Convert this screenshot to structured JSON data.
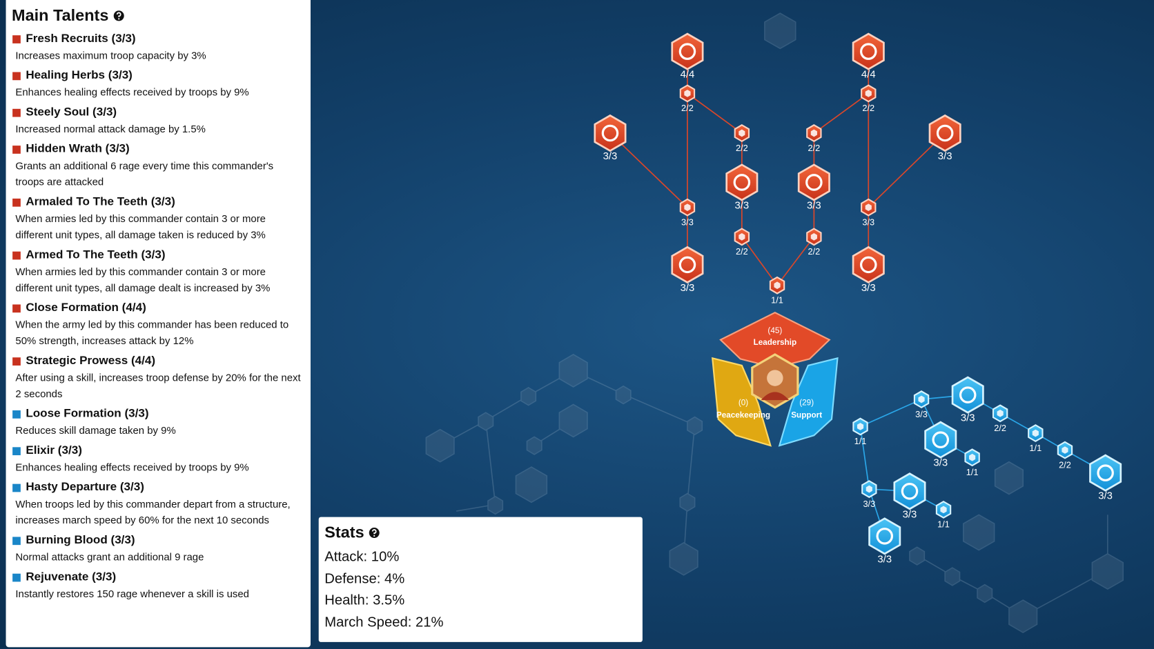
{
  "panel": {
    "title": "Main Talents",
    "talents": [
      {
        "name": "Fresh Recruits (3/3)",
        "description": "Increases maximum troop capacity by 3%",
        "color": "#c8321f"
      },
      {
        "name": "Healing Herbs (3/3)",
        "description": "Enhances healing effects received by troops by 9%",
        "color": "#c8321f"
      },
      {
        "name": "Steely Soul (3/3)",
        "description": "Increased normal attack damage by 1.5%",
        "color": "#c8321f"
      },
      {
        "name": "Hidden Wrath (3/3)",
        "description": "Grants an additional 6 rage every time this commander's troops are attacked",
        "color": "#c8321f"
      },
      {
        "name": "Armaled To The Teeth (3/3)",
        "description": "When armies led by this commander contain 3 or more different unit types, all damage taken is reduced by 3%",
        "color": "#c8321f"
      },
      {
        "name": "Armed To The Teeth (3/3)",
        "description": "When armies led by this commander contain 3 or more different unit types, all damage dealt is increased by 3%",
        "color": "#c8321f"
      },
      {
        "name": "Close Formation (4/4)",
        "description": "When the army led by this commander has been reduced to 50% strength, increases attack by 12%",
        "color": "#c8321f"
      },
      {
        "name": "Strategic Prowess (4/4)",
        "description": "After using a skill, increases troop defense by 20% for the next 2 seconds",
        "color": "#c8321f"
      },
      {
        "name": "Loose Formation (3/3)",
        "description": "Reduces skill damage taken by 9%",
        "color": "#1a86c8"
      },
      {
        "name": "Elixir (3/3)",
        "description": "Enhances healing effects received by troops by 9%",
        "color": "#1a86c8"
      },
      {
        "name": "Hasty Departure (3/3)",
        "description": "When troops led by this commander depart from a structure, increases march speed by 60% for the next 10 seconds",
        "color": "#1a86c8"
      },
      {
        "name": "Burning Blood (3/3)",
        "description": "Normal attacks grant an additional 9 rage",
        "color": "#1a86c8"
      },
      {
        "name": "Rejuvenate (3/3)",
        "description": "Instantly restores 150 rage whenever a skill is used",
        "color": "#1a86c8"
      }
    ]
  },
  "stats": {
    "title": "Stats",
    "lines": [
      "Attack: 10%",
      "Defense: 4%",
      "Health: 3.5%",
      "March Speed: 21%"
    ]
  },
  "tree": {
    "center": {
      "leadership": {
        "points": "(45)",
        "name": "Leadership"
      },
      "peacekeeping": {
        "points": "(0)",
        "name": "Peacekeeping"
      },
      "support": {
        "points": "(29)",
        "name": "Support"
      }
    },
    "red_nodes": [
      "4/4",
      "4/4",
      "2/2",
      "2/2",
      "3/3",
      "2/2",
      "2/2",
      "3/3",
      "3/3",
      "3/3",
      "3/3",
      "3/3",
      "2/2",
      "2/2",
      "3/3",
      "3/3",
      "1/1"
    ],
    "blue_nodes": [
      "3/3",
      "3/3",
      "2/2",
      "1/1",
      "3/3",
      "1/1",
      "2/2",
      "1/1",
      "3/3",
      "3/3",
      "3/3",
      "1/1",
      "3/3"
    ]
  }
}
